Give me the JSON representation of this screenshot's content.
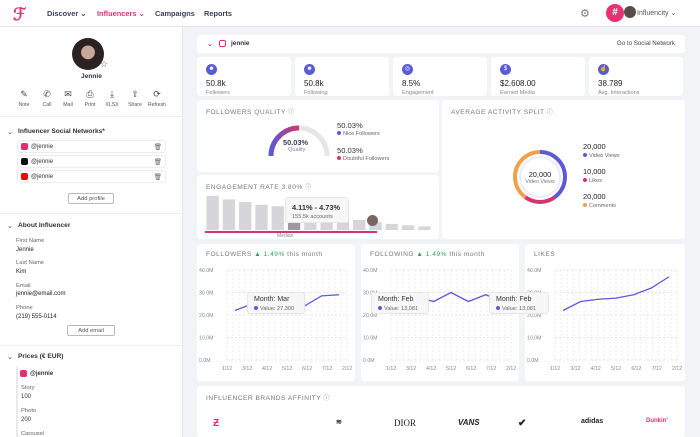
{
  "nav": {
    "discover": "Discover",
    "influencers": "Influencers",
    "campaigns": "Campaigns",
    "reports": "Reports",
    "user": "Influencity",
    "brand_glyph": "#",
    "logo_glyph": "ℱ"
  },
  "profile": {
    "name": "Jennie",
    "handle": "jennie",
    "go_social": "Go to Social Network"
  },
  "actions": [
    {
      "icon": "✎",
      "label": "Note"
    },
    {
      "icon": "✆",
      "label": "Call"
    },
    {
      "icon": "✉",
      "label": "Mail"
    },
    {
      "icon": "⎙",
      "label": "Print"
    },
    {
      "icon": "⤓",
      "label": "XLSX"
    },
    {
      "icon": "⇧",
      "label": "Share"
    },
    {
      "icon": "⟳",
      "label": "Refresh"
    }
  ],
  "networks": {
    "title": "Influencer Social Networks*",
    "items": [
      {
        "handle": "@jennie",
        "color": "#e1306c"
      },
      {
        "handle": "@jennie",
        "color": "#111111"
      },
      {
        "handle": "@jennie",
        "color": "#ff0000"
      }
    ],
    "add_profile": "Add profile"
  },
  "about": {
    "title": "About Influencer",
    "first_name_label": "First Name",
    "first_name": "Jennie",
    "last_name_label": "Last Name",
    "last_name": "Kim",
    "email_label": "Email",
    "email": "jennie@email.com",
    "phone_label": "Phone",
    "phone": "(219) 555-0114",
    "add_email": "Add email"
  },
  "prices": {
    "title": "Prices (€ EUR)",
    "handle": "@jennie",
    "story_label": "Story",
    "story": "100",
    "photo_label": "Photo",
    "photo": "200",
    "carousel_label": "Carousel"
  },
  "stats": [
    {
      "icon": "☻",
      "value": "50.8k",
      "label": "Followers"
    },
    {
      "icon": "☻",
      "value": "50.8k",
      "label": "Following"
    },
    {
      "icon": "◎",
      "value": "8.5%",
      "label": "Engagement"
    },
    {
      "icon": "$",
      "value": "$2.608.00",
      "label": "Earned Media"
    },
    {
      "icon": "☝",
      "value": "38.789",
      "label": "Avg. Interactions"
    }
  ],
  "quality": {
    "title": "FOLLOWERS QUALITY",
    "center": "50.03%",
    "center_label": "Quality",
    "nice_value": "50.03%",
    "nice_label": "Nice Followers",
    "doubt_value": "50.03%",
    "doubt_label": "Doubtful Followers"
  },
  "activity": {
    "title": "AVERAGE ACTIVITY SPLIT",
    "center_value": "20,000",
    "center_label": "Video Views",
    "items": [
      {
        "value": "20,000",
        "label": "Video Views"
      },
      {
        "value": "10,000",
        "label": "Likes"
      },
      {
        "value": "20,000",
        "label": "Comments"
      }
    ]
  },
  "engagement": {
    "title": "ENGAGEMENT RATE 3.80%",
    "range": "4.11% - 4.73%",
    "accounts": "155.5k accounts",
    "median": "Median",
    "bars": [
      0.95,
      0.85,
      0.78,
      0.7,
      0.66,
      0.62,
      0.5,
      0.42,
      0.36,
      0.28,
      0.22,
      0.17,
      0.13,
      0.1
    ]
  },
  "followers_chart": {
    "title": "FOLLOWERS",
    "change": "▲ 1.49%",
    "period": "this month",
    "tip_title": "Month: Mar",
    "tip_value": "Value: 27.300",
    "y_ticks": [
      "40.0M",
      "30.0M",
      "20.0M",
      "10.0M",
      "0.0M"
    ],
    "x_ticks": [
      "1/12",
      "3/12",
      "4/12",
      "5/12",
      "6/12",
      "7/12",
      "2/12"
    ],
    "values": [
      22,
      25,
      29,
      28,
      24,
      28.5,
      29
    ]
  },
  "following_chart": {
    "title": "FOLLOWING",
    "change": "▲ 1.49%",
    "period": "this month",
    "tip1_title": "Month: Feb",
    "tip1_value": "Value: 13,081",
    "tip2_title": "Month: Feb",
    "tip2_value": "Value: 13,081",
    "y_ticks": [
      "40.0M",
      "30.0M",
      "20.0M",
      "10.0M",
      "0.0M"
    ],
    "x_ticks": [
      "1/12",
      "3/12",
      "4/12",
      "5/12",
      "6/12",
      "7/12",
      "2/12"
    ],
    "values": [
      25,
      28,
      26,
      30,
      26,
      29,
      26
    ]
  },
  "likes_chart": {
    "title": "LIKES",
    "y_ticks": [
      "40.0M",
      "30.0M",
      "20.0M",
      "10.0M",
      "0.0M"
    ],
    "x_ticks": [
      "1/12",
      "3/12",
      "4/12",
      "5/12",
      "6/12",
      "7/12",
      "2/12"
    ],
    "values": [
      22,
      26,
      27,
      27.5,
      29,
      32,
      37
    ]
  },
  "brands": {
    "title": "INFLUENCER BRANDS AFFINITY",
    "items": [
      "Ƶ",
      "",
      "≋",
      "DIOR",
      "VANS",
      "✔",
      "adidas",
      "Dunkin'"
    ]
  }
}
